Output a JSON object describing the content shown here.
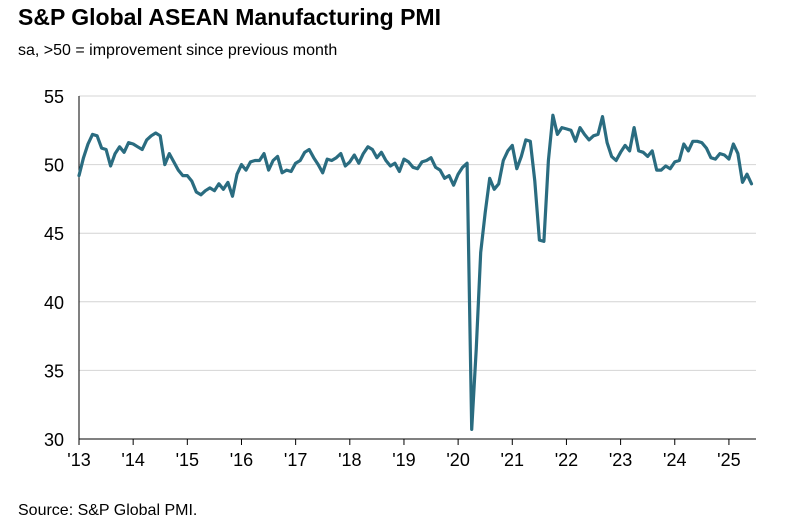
{
  "title": "S&P Global ASEAN Manufacturing PMI",
  "subtitle": "sa, >50 = improvement since previous month",
  "source": "Source: S&P Global PMI.",
  "chart_data": {
    "type": "line",
    "title": "S&P Global ASEAN Manufacturing PMI",
    "subtitle": "sa, >50 = improvement since previous month",
    "xlabel": "",
    "ylabel": "",
    "ylim": [
      30,
      55
    ],
    "yticks": [
      30,
      35,
      40,
      45,
      50,
      55
    ],
    "xlim": [
      2013.0,
      2025.5
    ],
    "xticks": [
      2013,
      2014,
      2015,
      2016,
      2017,
      2018,
      2019,
      2020,
      2021,
      2022,
      2023,
      2024,
      2025
    ],
    "xtick_labels": [
      "'13",
      "'14",
      "'15",
      "'16",
      "'17",
      "'18",
      "'19",
      "'20",
      "'21",
      "'22",
      "'23",
      "'24",
      "'25"
    ],
    "grid": "horizontal",
    "legend": "none",
    "line_color": "#2a6c80",
    "series": [
      {
        "start": "2013-01",
        "frequency": "monthly",
        "values": [
          49.2,
          50.5,
          51.5,
          52.2,
          52.1,
          51.2,
          51.1,
          49.9,
          50.8,
          51.3,
          50.9,
          51.6,
          51.5,
          51.3,
          51.1,
          51.8,
          52.1,
          52.3,
          52.1,
          50.0,
          50.8,
          50.2,
          49.6,
          49.2,
          49.2,
          48.8,
          48.0,
          47.8,
          48.1,
          48.3,
          48.1,
          48.6,
          48.2,
          48.7,
          47.7,
          49.3,
          50.0,
          49.6,
          50.2,
          50.3,
          50.3,
          50.8,
          49.6,
          50.3,
          50.6,
          49.4,
          49.6,
          49.5,
          50.1,
          50.3,
          50.9,
          51.1,
          50.5,
          50.0,
          49.4,
          50.4,
          50.3,
          50.5,
          50.8,
          49.9,
          50.2,
          50.7,
          50.1,
          50.8,
          51.3,
          51.1,
          50.5,
          50.9,
          50.3,
          49.9,
          50.1,
          49.5,
          50.4,
          50.2,
          49.8,
          49.7,
          50.2,
          50.3,
          50.5,
          49.8,
          49.6,
          49.0,
          49.2,
          48.5,
          49.3,
          49.8,
          50.1,
          30.7,
          36.5,
          43.6,
          46.5,
          49.0,
          48.2,
          48.6,
          50.3,
          51.0,
          51.4,
          49.7,
          50.6,
          51.8,
          51.7,
          48.8,
          44.5,
          44.4,
          50.3,
          53.6,
          52.2,
          52.7,
          52.6,
          52.5,
          51.7,
          52.7,
          52.2,
          51.8,
          52.1,
          52.2,
          53.5,
          51.6,
          50.6,
          50.3,
          50.9,
          51.4,
          51.0,
          52.7,
          51.0,
          50.9,
          50.6,
          51.0,
          49.6,
          49.6,
          49.9,
          49.7,
          50.2,
          50.3,
          51.5,
          51.0,
          51.7,
          51.7,
          51.6,
          51.2,
          50.5,
          50.4,
          50.8,
          50.7,
          50.4,
          51.5,
          50.8,
          48.7,
          49.3,
          48.6
        ]
      }
    ]
  }
}
